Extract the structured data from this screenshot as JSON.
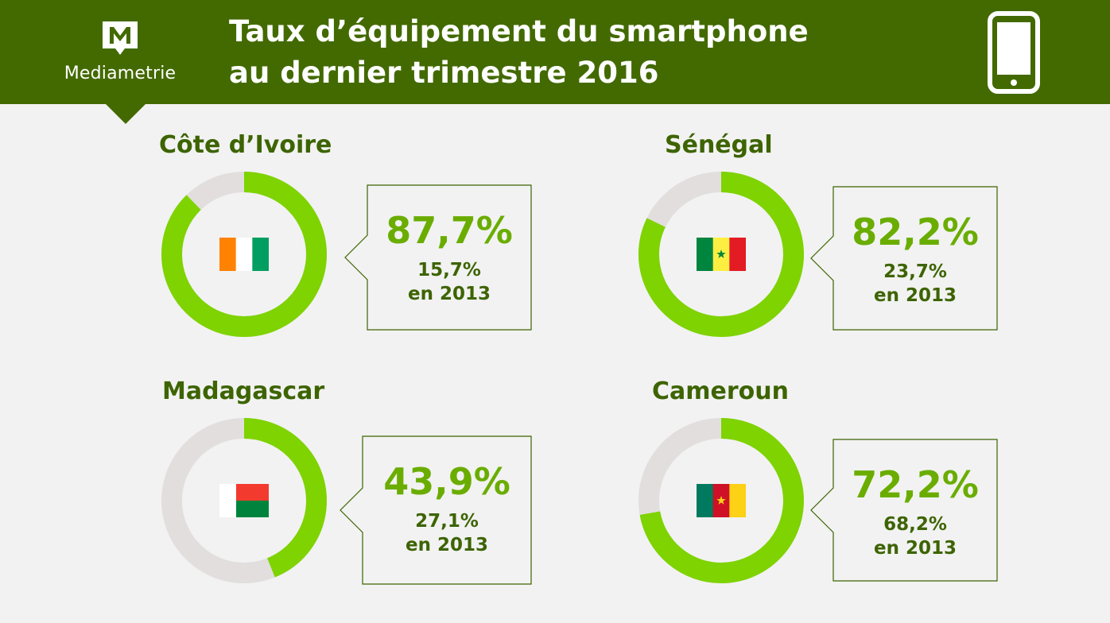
{
  "header": {
    "logo_text": "Mediametrie",
    "title_line1": "Taux d’équipement du smartphone",
    "title_line2": "au dernier trimestre 2016",
    "icon": "smartphone-icon",
    "background_color": "#436a00"
  },
  "colors": {
    "ring_filled": "#7ed300",
    "ring_empty": "#e2dede",
    "value_text": "#6aad00",
    "label_text": "#3d6401"
  },
  "chart_data": [
    {
      "type": "pie",
      "country": "Côte d’Ivoire",
      "flag": "ivory-coast-flag-icon",
      "value": 87.7,
      "value_label": "87,7%",
      "previous_value": 15.7,
      "previous_label": "15,7%",
      "previous_year_label": "en 2013"
    },
    {
      "type": "pie",
      "country": "Sénégal",
      "flag": "senegal-flag-icon",
      "value": 82.2,
      "value_label": "82,2%",
      "previous_value": 23.7,
      "previous_label": "23,7%",
      "previous_year_label": "en 2013"
    },
    {
      "type": "pie",
      "country": "Madagascar",
      "flag": "madagascar-flag-icon",
      "value": 43.9,
      "value_label": "43,9%",
      "previous_value": 27.1,
      "previous_label": "27,1%",
      "previous_year_label": "en 2013"
    },
    {
      "type": "pie",
      "country": "Cameroun",
      "flag": "cameroon-flag-icon",
      "value": 72.2,
      "value_label": "72,2%",
      "previous_value": 68.2,
      "previous_label": "68,2%",
      "previous_year_label": "en 2013"
    }
  ]
}
